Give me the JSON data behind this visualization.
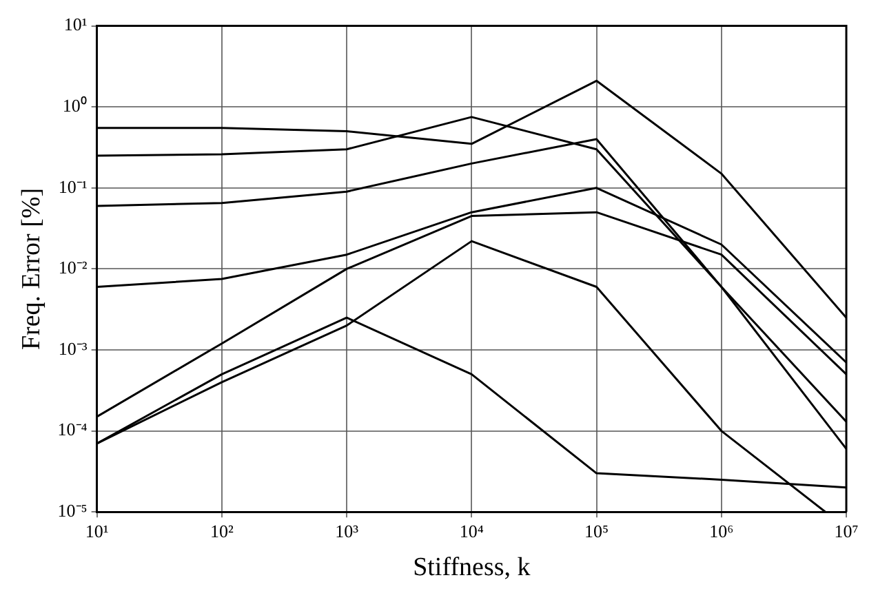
{
  "chart_data": {
    "type": "line",
    "xlabel": "Stiffness, k",
    "ylabel": "Freq. Error [%]",
    "x": [
      10,
      100,
      1000,
      10000,
      100000,
      1000000,
      10000000
    ],
    "series": [
      {
        "color": "#000000",
        "values": [
          0.55,
          0.55,
          0.5,
          0.35,
          2.1,
          0.15,
          0.0025
        ]
      },
      {
        "color": "#000000",
        "values": [
          0.25,
          0.26,
          0.3,
          0.75,
          0.3,
          0.006,
          6e-05
        ]
      },
      {
        "color": "#000000",
        "values": [
          0.06,
          0.065,
          0.09,
          0.2,
          0.4,
          0.006,
          0.00013
        ]
      },
      {
        "color": "#000000",
        "values": [
          0.006,
          0.0075,
          0.015,
          0.05,
          0.1,
          0.02,
          0.0007
        ]
      },
      {
        "color": "#000000",
        "values": [
          0.00015,
          0.0012,
          0.01,
          0.045,
          0.05,
          0.015,
          0.0005
        ]
      },
      {
        "color": "#000000",
        "values": [
          7e-05,
          0.0005,
          0.0025,
          0.0005,
          3e-05,
          2.5e-05,
          2e-05
        ]
      },
      {
        "color": "#000000",
        "x": [
          10,
          100,
          1000,
          10000,
          100000,
          1000000,
          6800000
        ],
        "values": [
          7e-05,
          0.0004,
          0.002,
          0.022,
          0.006,
          0.0001,
          1e-05
        ]
      }
    ],
    "log": "xy",
    "xlim": [
      10,
      10000000
    ],
    "ylim": [
      1e-05,
      10
    ],
    "xticks": [
      {
        "value": 10,
        "label": "10¹"
      },
      {
        "value": 100,
        "label": "10²"
      },
      {
        "value": 1000,
        "label": "10³"
      },
      {
        "value": 10000,
        "label": "10⁴"
      },
      {
        "value": 100000,
        "label": "10⁵"
      },
      {
        "value": 1000000,
        "label": "10⁶"
      },
      {
        "value": 10000000,
        "label": "10⁷"
      }
    ],
    "yticks": [
      {
        "value": 1e-05,
        "label": "10⁻⁵"
      },
      {
        "value": 0.0001,
        "label": "10⁻⁴"
      },
      {
        "value": 0.001,
        "label": "10⁻³"
      },
      {
        "value": 0.01,
        "label": "10⁻²"
      },
      {
        "value": 0.1,
        "label": "10⁻¹"
      },
      {
        "value": 1,
        "label": "10⁰"
      },
      {
        "value": 10,
        "label": "10¹"
      }
    ],
    "grid": true,
    "marker": "none",
    "line_style": "solid",
    "legend": false
  }
}
